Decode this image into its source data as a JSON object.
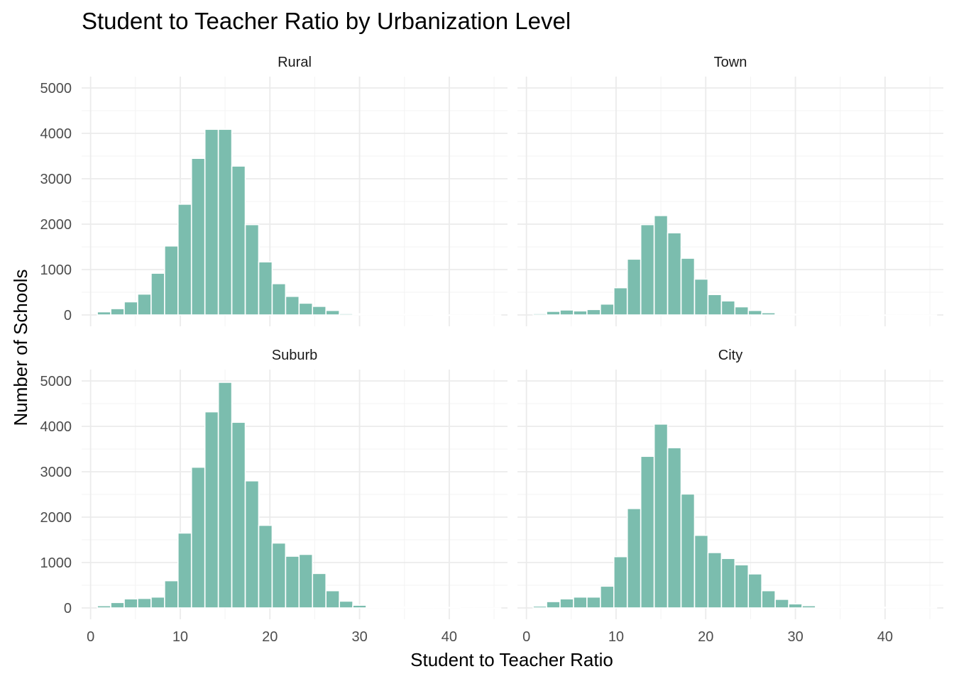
{
  "chart_data": {
    "type": "bar",
    "title": "Student to Teacher Ratio by Urbanization Level",
    "xlabel": "Student to Teacher Ratio",
    "ylabel": "Number of Schools",
    "xlim": [
      -1,
      46.5
    ],
    "ylim": [
      -250,
      5250
    ],
    "x_ticks": [
      0,
      10,
      20,
      30,
      40
    ],
    "y_ticks": [
      0,
      1000,
      2000,
      3000,
      4000,
      5000
    ],
    "grid": true,
    "bar_color": "#7BBDAE",
    "bar_outline": "#ffffff",
    "bin_centers": [
      1.5,
      3,
      4.5,
      6,
      7.5,
      9,
      10.5,
      12,
      13.5,
      15,
      16.5,
      18,
      19.5,
      21,
      22.5,
      24,
      25.5,
      27,
      28.5,
      30,
      31.5,
      33,
      34.5,
      36,
      37.5,
      39,
      40.5,
      42,
      43.5,
      45
    ],
    "bin_width": 1.5,
    "panels": [
      {
        "name": "Rural",
        "values": [
          70,
          140,
          290,
          460,
          920,
          1520,
          2440,
          3450,
          4090,
          4090,
          3280,
          1990,
          1170,
          690,
          410,
          260,
          190,
          100,
          30,
          25,
          15,
          15,
          15,
          15,
          10,
          5,
          0,
          0,
          0,
          0
        ]
      },
      {
        "name": "Town",
        "values": [
          30,
          80,
          110,
          90,
          120,
          240,
          600,
          1230,
          1990,
          2190,
          1810,
          1250,
          790,
          450,
          310,
          180,
          100,
          50,
          15,
          15,
          10,
          10,
          10,
          10,
          10,
          5,
          0,
          0,
          0,
          0
        ]
      },
      {
        "name": "Suburb",
        "values": [
          50,
          120,
          200,
          210,
          240,
          600,
          1650,
          3100,
          4320,
          4970,
          4090,
          2800,
          1820,
          1430,
          1140,
          1180,
          760,
          380,
          150,
          60,
          25,
          20,
          20,
          20,
          20,
          15,
          10,
          0,
          0,
          0
        ]
      },
      {
        "name": "City",
        "values": [
          40,
          140,
          200,
          240,
          240,
          480,
          1130,
          2190,
          3340,
          4050,
          3530,
          2510,
          1600,
          1220,
          1090,
          950,
          750,
          380,
          190,
          90,
          50,
          25,
          20,
          20,
          15,
          15,
          15,
          15,
          15,
          10
        ]
      }
    ]
  }
}
